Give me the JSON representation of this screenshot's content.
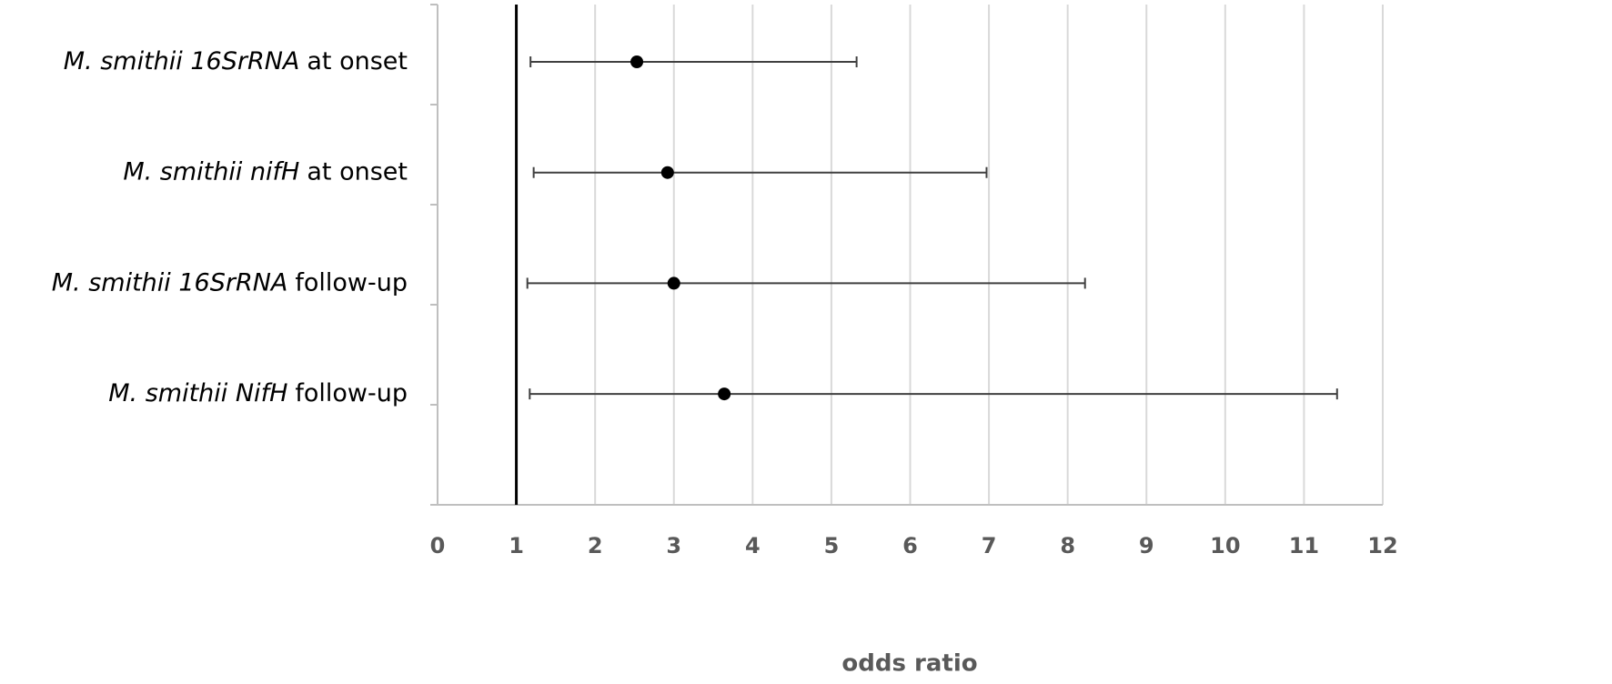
{
  "chart_data": {
    "type": "forest",
    "categories": [
      {
        "italic": "M. smithii 16SrRNA",
        "plain": "at onset"
      },
      {
        "italic": "M. smithii nifH",
        "plain": "at onset"
      },
      {
        "italic": "M. smithii 16SrRNA",
        "plain": "follow-up"
      },
      {
        "italic": "M. smithii NifH",
        "plain": "follow-up"
      }
    ],
    "values": [
      2.53,
      2.92,
      3.0,
      3.64
    ],
    "lower": [
      1.18,
      1.22,
      1.14,
      1.17
    ],
    "upper": [
      5.32,
      6.97,
      8.22,
      11.42
    ],
    "color": "#000000",
    "reference": 1,
    "xlabel": "odds ratio",
    "xlim": [
      0,
      12
    ],
    "xticks": [
      0,
      1,
      2,
      3,
      4,
      5,
      6,
      7,
      8,
      9,
      10,
      11,
      12
    ],
    "grid": true
  }
}
